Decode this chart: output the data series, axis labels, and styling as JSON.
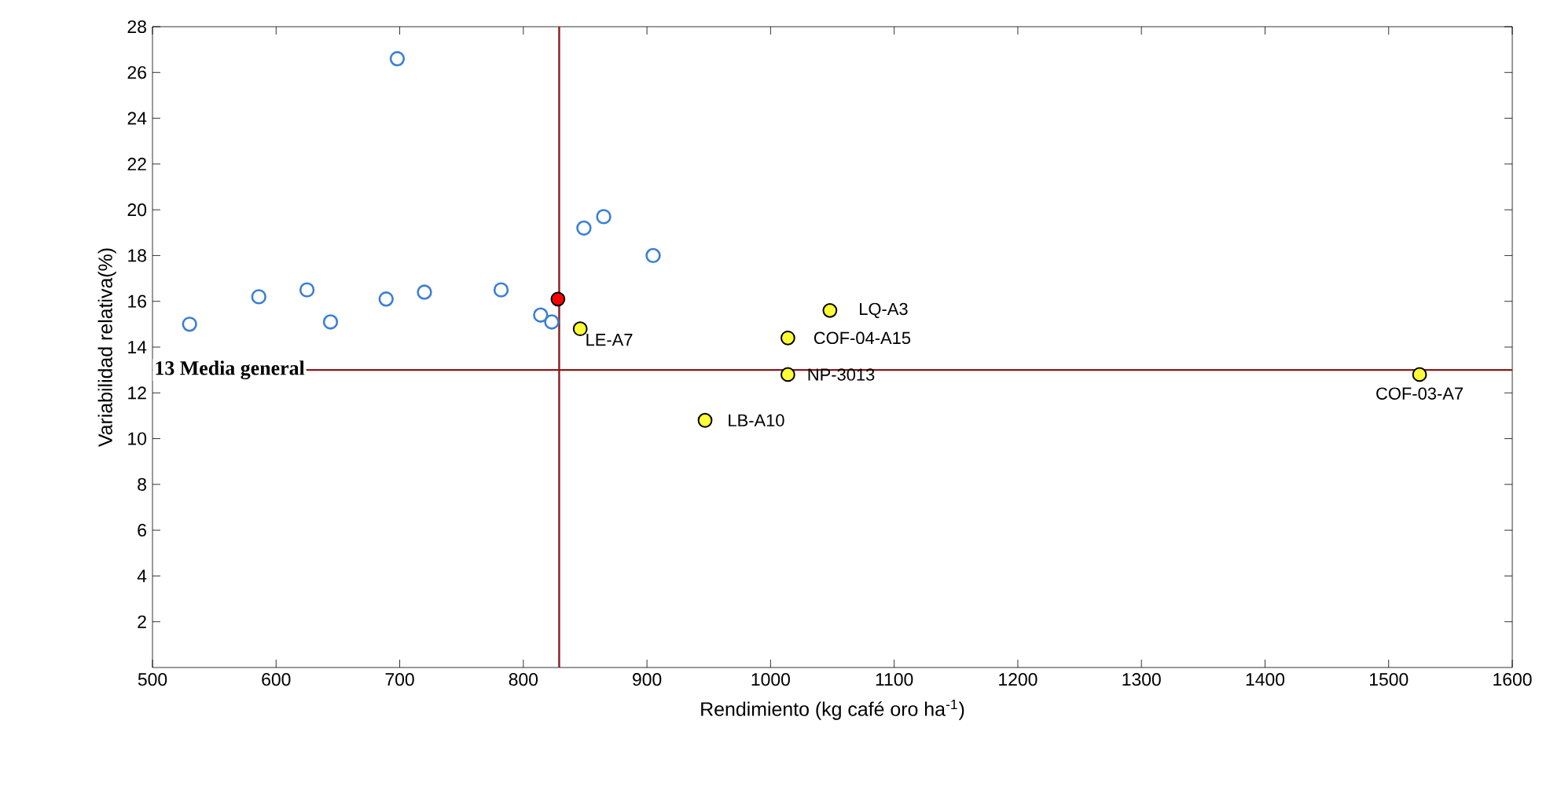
{
  "chart_data": {
    "type": "scatter",
    "xlabel": "Rendimiento (kg café oro ha$^{-1}$)",
    "ylabel": "Variabilidad relativa(%)",
    "marker": "circle",
    "grid": false,
    "xlim": [
      500,
      1600
    ],
    "xticks": [
      500,
      600,
      700,
      800,
      900,
      1000,
      1100,
      1200,
      1300,
      1400,
      1500,
      1600
    ],
    "ylim": [
      0,
      28
    ],
    "yticks": [
      2,
      4,
      6,
      8,
      10,
      12,
      14,
      16,
      18,
      20,
      22,
      24,
      26,
      28
    ],
    "series": [
      {
        "color": "#3a7fd5",
        "x": [
          530,
          586,
          625,
          644,
          689,
          698,
          720,
          782,
          814,
          823,
          849,
          865,
          905
        ],
        "values": [
          15.0,
          16.2,
          16.5,
          15.1,
          16.1,
          26.6,
          16.4,
          16.5,
          15.4,
          15.1,
          19.2,
          19.7,
          18.0
        ]
      },
      {
        "color": "#ff0000",
        "x": [
          828
        ],
        "values": [
          16.1
        ]
      },
      {
        "color": "#ffff33",
        "x": [
          846,
          947,
          1014,
          1014,
          1048,
          1525
        ],
        "values": [
          14.8,
          10.8,
          12.8,
          14.4,
          15.6,
          12.8
        ]
      }
    ],
    "ref_lines": [
      {
        "axis": "x",
        "value": 829,
        "color": "#8b1a1a"
      },
      {
        "axis": "y",
        "value": 13,
        "label": "13 Media general",
        "color": "#8b1a1a"
      }
    ],
    "annotations": [
      {
        "text": "LE-A7",
        "x": 846,
        "y": 14.8
      },
      {
        "text": "LB-A10",
        "x": 947,
        "y": 10.8
      },
      {
        "text": "NP-3013",
        "x": 1014,
        "y": 12.8
      },
      {
        "text": "COF-04-A15",
        "x": 1014,
        "y": 14.4
      },
      {
        "text": "LQ-A3",
        "x": 1048,
        "y": 15.6
      },
      {
        "text": "COF-03-A7",
        "x": 1525,
        "y": 12.8
      }
    ]
  }
}
